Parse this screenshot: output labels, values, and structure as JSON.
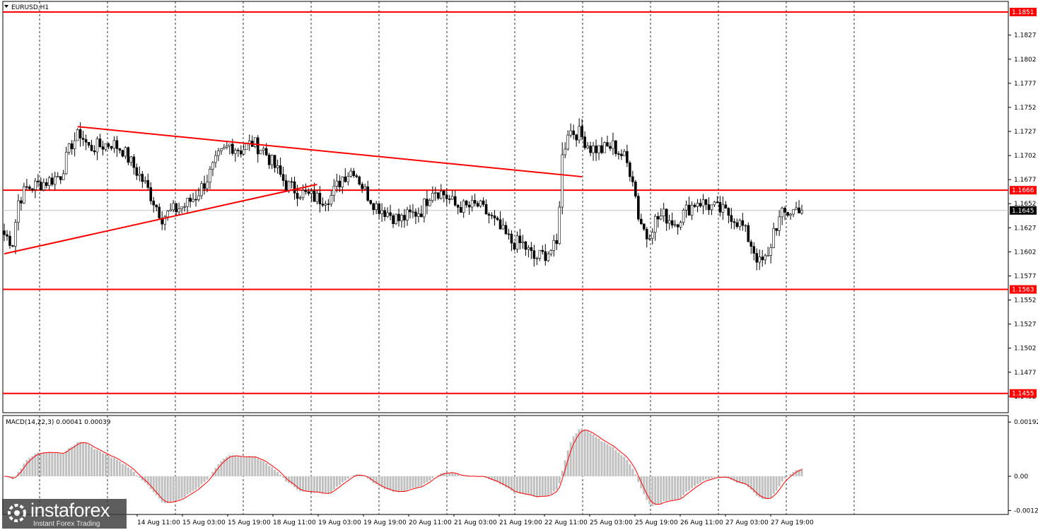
{
  "chart_data": {
    "type": "candlestick",
    "symbol_label": "EURUSD,H1",
    "price_axis": {
      "min": 1.1435,
      "max": 1.1862,
      "tick_labels": [
        "1.1827",
        "1.1802",
        "1.1777",
        "1.1752",
        "1.1727",
        "1.1702",
        "1.1677",
        "1.1652",
        "1.1627",
        "1.1602",
        "1.1577",
        "1.1552",
        "1.1527",
        "1.1502",
        "1.1477",
        "1.1452"
      ]
    },
    "current_price": "1.1645",
    "levels": [
      {
        "label": "1.1851",
        "value": 1.1851,
        "color": "#ff0000"
      },
      {
        "label": "1.1666",
        "value": 1.1666,
        "color": "#ff0000"
      },
      {
        "label": "1.1563",
        "value": 1.1563,
        "color": "#ff0000"
      },
      {
        "label": "1.1455",
        "value": 1.1455,
        "color": "#ff0000"
      }
    ],
    "trendlines": [
      {
        "from": [
          0,
          1.16
        ],
        "to": [
          111,
          1.1672
        ],
        "color": "#ff0000"
      },
      {
        "from": [
          26,
          1.1732
        ],
        "to": [
          205,
          1.168
        ],
        "color": "#ff0000"
      }
    ],
    "time_labels": [
      "14 Aug 11:00",
      "15 Aug 03:00",
      "15 Aug 19:00",
      "18 Aug 11:00",
      "19 Aug 03:00",
      "19 Aug 19:00",
      "20 Aug 11:00",
      "21 Aug 03:00",
      "21 Aug 19:00",
      "22 Aug 11:00",
      "25 Aug 03:00",
      "25 Aug 19:00",
      "26 Aug 11:00",
      "27 Aug 03:00",
      "27 Aug 19:00"
    ],
    "close_path": [
      [
        0,
        1.162
      ],
      [
        3,
        1.1612
      ],
      [
        5,
        1.1655
      ],
      [
        8,
        1.1668
      ],
      [
        12,
        1.1672
      ],
      [
        16,
        1.1676
      ],
      [
        20,
        1.1682
      ],
      [
        24,
        1.1715
      ],
      [
        27,
        1.1725
      ],
      [
        30,
        1.171
      ],
      [
        34,
        1.1712
      ],
      [
        38,
        1.1715
      ],
      [
        42,
        1.1708
      ],
      [
        46,
        1.169
      ],
      [
        50,
        1.1672
      ],
      [
        53,
        1.1655
      ],
      [
        56,
        1.1638
      ],
      [
        60,
        1.1645
      ],
      [
        64,
        1.165
      ],
      [
        68,
        1.166
      ],
      [
        72,
        1.1678
      ],
      [
        76,
        1.17
      ],
      [
        80,
        1.1713
      ],
      [
        84,
        1.1708
      ],
      [
        88,
        1.1715
      ],
      [
        92,
        1.1708
      ],
      [
        96,
        1.169
      ],
      [
        100,
        1.1672
      ],
      [
        104,
        1.1665
      ],
      [
        108,
        1.166
      ],
      [
        112,
        1.1657
      ],
      [
        116,
        1.166
      ],
      [
        120,
        1.168
      ],
      [
        124,
        1.1688
      ],
      [
        128,
        1.1665
      ],
      [
        132,
        1.165
      ],
      [
        136,
        1.1643
      ],
      [
        140,
        1.1635
      ],
      [
        144,
        1.164
      ],
      [
        148,
        1.1645
      ],
      [
        152,
        1.1668
      ],
      [
        156,
        1.1662
      ],
      [
        160,
        1.165
      ],
      [
        164,
        1.1648
      ],
      [
        168,
        1.165
      ],
      [
        172,
        1.164
      ],
      [
        176,
        1.1625
      ],
      [
        180,
        1.1612
      ],
      [
        184,
        1.161
      ],
      [
        188,
        1.1595
      ],
      [
        192,
        1.16
      ],
      [
        196,
        1.1608
      ],
      [
        198,
        1.17
      ],
      [
        200,
        1.1728
      ],
      [
        204,
        1.1725
      ],
      [
        208,
        1.171
      ],
      [
        212,
        1.1708
      ],
      [
        216,
        1.1712
      ],
      [
        220,
        1.17
      ],
      [
        223,
        1.168
      ],
      [
        225,
        1.164
      ],
      [
        228,
        1.1618
      ],
      [
        231,
        1.1635
      ],
      [
        234,
        1.164
      ],
      [
        238,
        1.1632
      ],
      [
        242,
        1.1645
      ],
      [
        246,
        1.1655
      ],
      [
        250,
        1.165
      ],
      [
        254,
        1.1645
      ],
      [
        258,
        1.164
      ],
      [
        262,
        1.1628
      ],
      [
        265,
        1.161
      ],
      [
        268,
        1.159
      ],
      [
        271,
        1.1595
      ],
      [
        273,
        1.1625
      ],
      [
        276,
        1.164
      ],
      [
        280,
        1.1645
      ],
      [
        283,
        1.165
      ]
    ],
    "macd": {
      "label": "MACD(14,22,3) 0.00041 0.00039",
      "axis_labels": [
        "0.00192",
        "0.00",
        "-0.00121"
      ],
      "min": -0.00135,
      "max": 0.00215
    }
  },
  "watermark": {
    "brand": "instaforex",
    "tagline": "Instant Forex Trading"
  }
}
